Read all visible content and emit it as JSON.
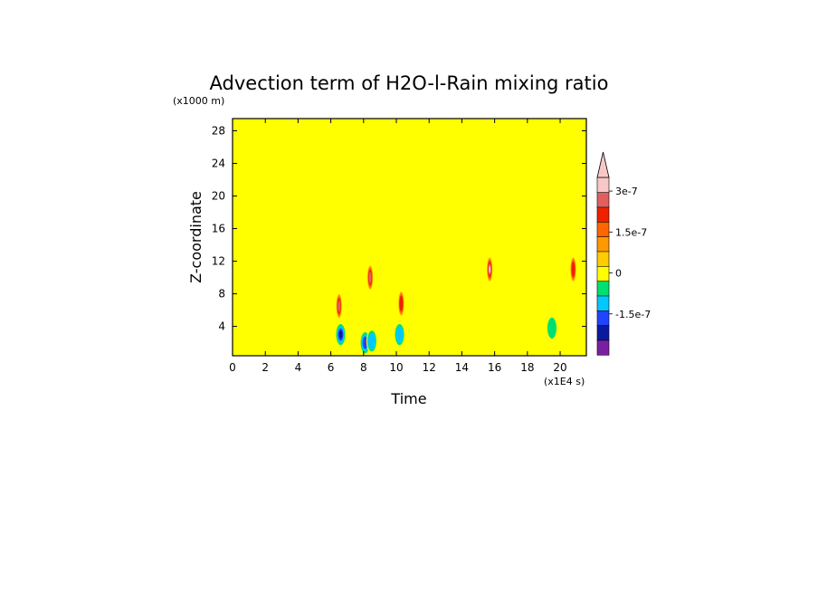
{
  "chart_data": {
    "type": "heatmap",
    "title": "Advection term of H2O-l-Rain mixing ratio",
    "xlabel": "Time",
    "ylabel": "Z-coordinate",
    "x_unit": "(x1E4 s)",
    "y_unit": "(x1000 m)",
    "xlim": [
      0,
      21.6
    ],
    "ylim": [
      0.4,
      29.5
    ],
    "x_ticks": [
      "0",
      "2",
      "4",
      "6",
      "8",
      "10",
      "12",
      "14",
      "16",
      "18",
      "20"
    ],
    "y_ticks": [
      "4",
      "8",
      "12",
      "16",
      "20",
      "24",
      "28"
    ],
    "background_value": 0,
    "onset_time": 6.0,
    "active_region": {
      "time_range": [
        6.0,
        21.6
      ],
      "z_top_approx": [
        13,
        15.5
      ],
      "description_values": "mixed small negative and zero values below ~13-15 km after t=6e4 s"
    },
    "features": [
      {
        "t": 6.6,
        "z": 3.0,
        "value": -2.5e-07
      },
      {
        "t": 8.1,
        "z": 2.0,
        "value": -2e-07
      },
      {
        "t": 8.5,
        "z": 2.2,
        "value": -1.5e-07
      },
      {
        "t": 10.2,
        "z": 3.0,
        "value": -1.5e-07
      },
      {
        "t": 19.5,
        "z": 3.8,
        "value": -1.2e-07
      },
      {
        "t": 6.5,
        "z": 6.5,
        "value": 2e-07
      },
      {
        "t": 8.4,
        "z": 10.0,
        "value": 2e-07
      },
      {
        "t": 10.3,
        "z": 6.8,
        "value": 1.5e-07
      },
      {
        "t": 15.7,
        "z": 11.0,
        "value": 2.5e-07
      },
      {
        "t": 20.8,
        "z": 11.0,
        "value": 1.5e-07
      }
    ],
    "colorbar": {
      "labels": [
        "3e-7",
        "1.5e-7",
        "0",
        "-1.5e-7"
      ],
      "label_values": [
        3e-07,
        1.5e-07,
        0,
        -1.5e-07
      ],
      "levels": [
        -3e-07,
        -2.5e-07,
        -2e-07,
        -1.5e-07,
        -1e-07,
        -5e-08,
        0,
        5e-08,
        1e-07,
        1.5e-07,
        2e-07,
        2.5e-07,
        3e-07,
        3.5e-07
      ],
      "colors": [
        "#7b1fa2",
        "#0a1a9e",
        "#1f45ff",
        "#00c8ff",
        "#00e070",
        "#ffff00",
        "#ffcc00",
        "#ff9900",
        "#ff6600",
        "#ee2200",
        "#e06060",
        "#f8c8c8"
      ],
      "extend": "max"
    }
  }
}
